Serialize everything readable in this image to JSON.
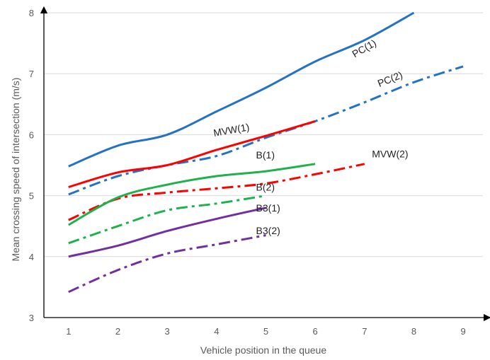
{
  "chart_data": {
    "type": "line",
    "title": "",
    "xlabel": "Vehicle position in the queue",
    "ylabel": "Mean crossing speed of intersection (m/s)",
    "xlim": [
      0.5,
      9.4
    ],
    "ylim": [
      3,
      8
    ],
    "x_ticks": [
      "1",
      "2",
      "3",
      "4",
      "5",
      "6",
      "7",
      "8",
      "9"
    ],
    "y_ticks": [
      "3",
      "4",
      "5",
      "6",
      "7",
      "8"
    ],
    "grid": "horizontal",
    "legend": "none",
    "series": [
      {
        "name": "PC(1)",
        "color": "#2472C4",
        "dash": "solid",
        "x": [
          1,
          2,
          3,
          4,
          5,
          6,
          7,
          8
        ],
        "y": [
          5.48,
          5.82,
          6.0,
          6.38,
          6.77,
          7.2,
          7.55,
          8.0
        ]
      },
      {
        "name": "PC(2)",
        "color": "#2472C4",
        "dash": "dashdot",
        "x": [
          1,
          2,
          3,
          4,
          5,
          6,
          7,
          8,
          9
        ],
        "y": [
          5.02,
          5.32,
          5.5,
          5.65,
          5.95,
          6.22,
          6.53,
          6.86,
          7.12
        ]
      },
      {
        "name": "MVW(1)",
        "color": "#FF0000",
        "dash": "solid",
        "x": [
          1,
          2,
          3,
          4,
          5,
          6
        ],
        "y": [
          5.14,
          5.38,
          5.5,
          5.75,
          5.98,
          6.22
        ]
      },
      {
        "name": "MVW(2)",
        "color": "#FF0000",
        "dash": "dashdot",
        "x": [
          1,
          2,
          3,
          4,
          5,
          6,
          7
        ],
        "y": [
          4.6,
          4.95,
          5.05,
          5.12,
          5.2,
          5.35,
          5.52
        ]
      },
      {
        "name": "B(1)",
        "color": "#1FB14B",
        "dash": "solid",
        "x": [
          1,
          2,
          3,
          4,
          5,
          6
        ],
        "y": [
          4.52,
          4.97,
          5.18,
          5.32,
          5.4,
          5.52
        ]
      },
      {
        "name": "B(2)",
        "color": "#1FB14B",
        "dash": "dashdot",
        "x": [
          1,
          2,
          3,
          4,
          5
        ],
        "y": [
          4.22,
          4.5,
          4.76,
          4.87,
          5.0
        ]
      },
      {
        "name": "B3(1)",
        "color": "#7030A0",
        "dash": "solid",
        "x": [
          1,
          2,
          3,
          4,
          5
        ],
        "y": [
          4.0,
          4.18,
          4.42,
          4.62,
          4.8
        ]
      },
      {
        "name": "B3(2)",
        "color": "#7030A0",
        "dash": "dashdot",
        "x": [
          1,
          2,
          3,
          4,
          5
        ],
        "y": [
          3.42,
          3.78,
          4.05,
          4.2,
          4.35
        ]
      }
    ]
  }
}
